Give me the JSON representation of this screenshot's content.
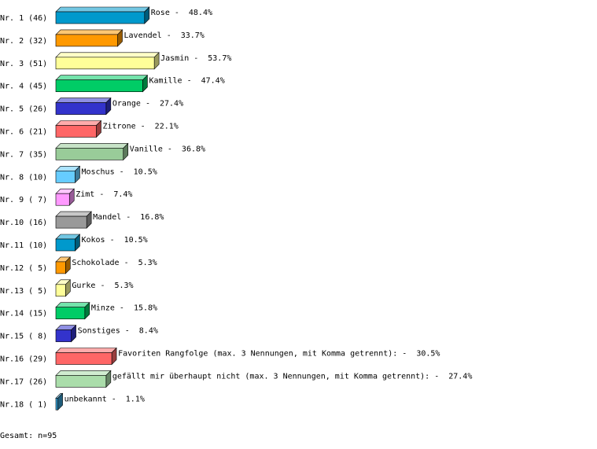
{
  "chart_data": {
    "type": "bar3d",
    "categories": [
      "Nr. 1 (46)",
      "Nr. 2 (32)",
      "Nr. 3 (51)",
      "Nr. 4 (45)",
      "Nr. 5 (26)",
      "Nr. 6 (21)",
      "Nr. 7 (35)",
      "Nr. 8 (10)",
      "Nr. 9 ( 7)",
      "Nr.10 (16)",
      "Nr.11 (10)",
      "Nr.12 ( 5)",
      "Nr.13 ( 5)",
      "Nr.14 (15)",
      "Nr.15 ( 8)",
      "Nr.16 (29)",
      "Nr.17 (26)",
      "Nr.18 ( 1)"
    ],
    "names": [
      "Rose",
      "Lavendel",
      "Jasmin",
      "Kamille",
      "Orange",
      "Zitrone",
      "Vanille",
      "Moschus",
      "Zimt",
      "Mandel",
      "Kokos",
      "Schokolade",
      "Gurke",
      "Minze",
      "Sonstiges",
      "Favoriten Rangfolge (max. 3 Nennungen, mit Komma getrennt):",
      "gefällt mir überhaupt nicht (max. 3 Nennungen, mit Komma getrennt):",
      "unbekannt"
    ],
    "label_separator": "-",
    "values": [
      48.4,
      33.7,
      53.7,
      47.4,
      27.4,
      22.1,
      36.8,
      10.5,
      7.4,
      16.8,
      10.5,
      5.3,
      5.3,
      15.8,
      8.4,
      30.5,
      27.4,
      1.1
    ],
    "value_labels": [
      "48.4%",
      "33.7%",
      "53.7%",
      "47.4%",
      "27.4%",
      "22.1%",
      "36.8%",
      "10.5%",
      "7.4%",
      "16.8%",
      "10.5%",
      "5.3%",
      "5.3%",
      "15.8%",
      "8.4%",
      "30.5%",
      "27.4%",
      "1.1%"
    ],
    "colors": [
      "#0099cc",
      "#ff9900",
      "#ffff99",
      "#00cc66",
      "#3333cc",
      "#ff6666",
      "#99cc99",
      "#66ccff",
      "#ff99ff",
      "#999999",
      "#0099cc",
      "#ff9900",
      "#ffff99",
      "#00cc66",
      "#3333cc",
      "#ff6666",
      "#aaddaa",
      "#3399cc"
    ],
    "footer": "Gesamt: n=95"
  }
}
